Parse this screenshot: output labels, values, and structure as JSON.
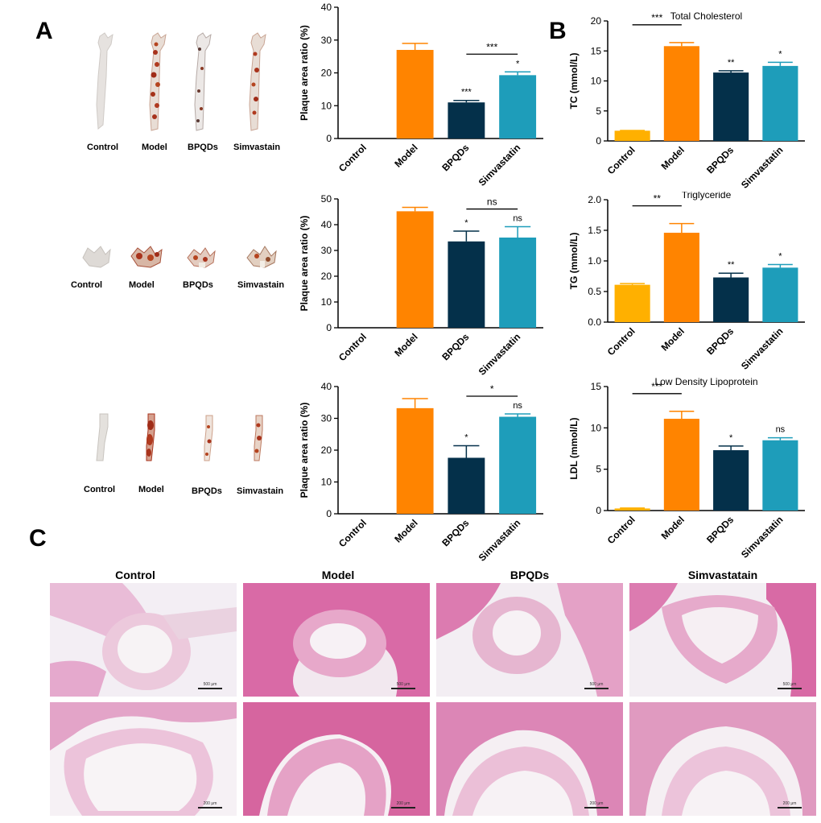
{
  "panels": {
    "a": "A",
    "b": "B",
    "c": "C"
  },
  "photo_rows": [
    {
      "labels": [
        "Control",
        "Model",
        "BPQDs",
        "Simvastain"
      ]
    },
    {
      "labels": [
        "Control",
        "Model",
        "BPQDs",
        "Simvastain"
      ]
    },
    {
      "labels": [
        "Control",
        "Model",
        "BPQDs",
        "Simvastain"
      ]
    }
  ],
  "histology": {
    "labels": [
      "Control",
      "Model",
      "BPQDs",
      "Simvastatain"
    ],
    "scale_top": "500 μm",
    "scale_bottom": "200 μm"
  },
  "colors": {
    "control": "#FFB000",
    "model": "#FF8400",
    "bpqds": "#04304A",
    "simvastatin": "#1E9DBA"
  },
  "chart_data": [
    {
      "id": "a1",
      "type": "bar",
      "title": "",
      "categories": [
        "Control",
        "Model",
        "BPQDs",
        "Simvastatin"
      ],
      "values": [
        0,
        27,
        11,
        19.3
      ],
      "errors": [
        0,
        2,
        0.6,
        1
      ],
      "ylabel": "Plaque area ratio  (%)",
      "ylim": [
        0,
        40
      ],
      "yticks": [
        "0",
        "10",
        "20",
        "30",
        "40"
      ],
      "annotations": [
        "",
        "",
        "***",
        "*"
      ],
      "brackets": [
        {
          "from": "BPQDs",
          "to": "Simvastatin",
          "label": "***"
        }
      ]
    },
    {
      "id": "a2",
      "type": "bar",
      "title": "",
      "categories": [
        "Control",
        "Model",
        "BPQDs",
        "Simvastatin"
      ],
      "values": [
        0,
        45.2,
        33.5,
        35
      ],
      "errors": [
        0,
        1.5,
        4,
        4.2
      ],
      "ylabel": "Plaque area ratio  (%)",
      "ylim": [
        0,
        50
      ],
      "yticks": [
        "0",
        "10",
        "20",
        "30",
        "40",
        "50"
      ],
      "annotations": [
        "",
        "",
        "*",
        "ns"
      ],
      "brackets": [
        {
          "from": "BPQDs",
          "to": "Simvastatin",
          "label": "ns"
        }
      ]
    },
    {
      "id": "a3",
      "type": "bar",
      "title": "",
      "categories": [
        "Control",
        "Model",
        "BPQDs",
        "Simvastatin"
      ],
      "values": [
        0,
        33.2,
        17.6,
        30.5
      ],
      "errors": [
        0,
        3,
        3.8,
        0.9
      ],
      "ylabel": "Plaque area ratio  (%)",
      "ylim": [
        0,
        40
      ],
      "yticks": [
        "0",
        "10",
        "20",
        "30",
        "40"
      ],
      "annotations": [
        "",
        "",
        "*",
        "ns"
      ],
      "brackets": [
        {
          "from": "BPQDs",
          "to": "Simvastatin",
          "label": "*"
        }
      ]
    },
    {
      "id": "b1",
      "type": "bar",
      "title": "Total Cholesterol",
      "categories": [
        "Control",
        "Model",
        "BPQDs",
        "Simvastatin"
      ],
      "values": [
        1.7,
        15.8,
        11.4,
        12.5
      ],
      "errors": [
        0.05,
        0.6,
        0.3,
        0.6
      ],
      "ylabel": "TC  (mmol/L)",
      "ylim": [
        0,
        20
      ],
      "yticks": [
        "0",
        "5",
        "10",
        "15",
        "20"
      ],
      "annotations": [
        "",
        "",
        "**",
        "*"
      ],
      "brackets": [
        {
          "from": "Control",
          "to": "Model",
          "label": "***"
        }
      ]
    },
    {
      "id": "b2",
      "type": "bar",
      "title": "Triglyceride",
      "categories": [
        "Control",
        "Model",
        "BPQDs",
        "Simvastatin"
      ],
      "values": [
        0.61,
        1.46,
        0.73,
        0.89
      ],
      "errors": [
        0.02,
        0.15,
        0.07,
        0.05
      ],
      "ylabel": "TG  (mmol/L)",
      "ylim": [
        0,
        2.0
      ],
      "yticks": [
        "0.0",
        "0.5",
        "1.0",
        "1.5",
        "2.0"
      ],
      "annotations": [
        "",
        "",
        "**",
        "*"
      ],
      "brackets": [
        {
          "from": "Control",
          "to": "Model",
          "label": "**"
        }
      ]
    },
    {
      "id": "b3",
      "type": "bar",
      "title": "Low Density Lipoprotein",
      "categories": [
        "Control",
        "Model",
        "BPQDs",
        "Simvastatin"
      ],
      "values": [
        0.25,
        11.1,
        7.3,
        8.5
      ],
      "errors": [
        0.05,
        0.9,
        0.5,
        0.3
      ],
      "ylabel": "LDL  (mmol/L)",
      "ylim": [
        0,
        15
      ],
      "yticks": [
        "0",
        "5",
        "10",
        "15"
      ],
      "annotations": [
        "",
        "",
        "*",
        "ns"
      ],
      "brackets": [
        {
          "from": "Control",
          "to": "Model",
          "label": "***"
        }
      ]
    }
  ]
}
